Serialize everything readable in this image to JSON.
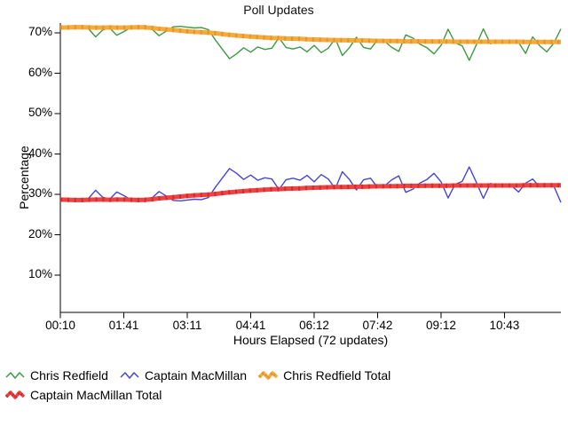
{
  "chart_data": {
    "type": "line",
    "title": "Poll Updates",
    "xlabel": "Hours Elapsed (72 updates)",
    "ylabel": "Percentage",
    "n_points": 72,
    "x_tick_labels": [
      "00:10",
      "01:41",
      "03:11",
      "04:41",
      "06:12",
      "07:42",
      "09:12",
      "10:43"
    ],
    "x_tick_indices": [
      0,
      9,
      18,
      27,
      36,
      45,
      54,
      63
    ],
    "y_ticks": [
      10,
      20,
      30,
      40,
      50,
      60,
      70
    ],
    "y_tick_suffix": "%",
    "ylim": [
      0,
      72
    ],
    "grid": false,
    "legend_position": "bottom",
    "series": [
      {
        "name": "Chris Redfield",
        "color": "#3d9a41",
        "line_style": "thin",
        "values": [
          71.0,
          71.4,
          71.0,
          71.5,
          71.0,
          69.0,
          70.7,
          71.2,
          69.4,
          70.3,
          71.3,
          71.5,
          71.8,
          70.9,
          69.3,
          70.4,
          71.5,
          71.6,
          71.4,
          71.2,
          71.3,
          70.8,
          68.2,
          65.9,
          63.6,
          64.8,
          66.3,
          65.2,
          66.5,
          65.9,
          66.2,
          68.8,
          66.4,
          66.0,
          66.5,
          65.3,
          66.9,
          65.1,
          66.2,
          68.6,
          64.4,
          66.3,
          68.9,
          66.4,
          66.0,
          68.3,
          67.9,
          66.4,
          65.4,
          69.5,
          68.7,
          67.2,
          66.3,
          64.8,
          66.9,
          70.9,
          67.5,
          66.8,
          63.2,
          67.0,
          71.0,
          67.3,
          67.8,
          67.8,
          67.9,
          67.6,
          64.9,
          69.0,
          66.8,
          65.3,
          67.5,
          71.0
        ]
      },
      {
        "name": "Captain MacMillan",
        "color": "#4446d8",
        "line_style": "thin",
        "values": [
          29.0,
          28.6,
          29.0,
          28.5,
          29.0,
          31.0,
          29.3,
          28.8,
          30.6,
          29.7,
          28.7,
          28.5,
          28.2,
          29.1,
          30.7,
          29.6,
          28.5,
          28.4,
          28.6,
          28.8,
          28.7,
          29.2,
          31.8,
          34.1,
          36.4,
          35.2,
          33.7,
          34.8,
          33.5,
          34.1,
          33.8,
          31.2,
          33.6,
          34.0,
          33.5,
          34.7,
          33.1,
          34.9,
          33.8,
          31.4,
          35.6,
          33.7,
          31.1,
          33.6,
          34.0,
          31.7,
          32.1,
          33.6,
          34.6,
          30.5,
          31.3,
          32.8,
          33.7,
          35.2,
          33.1,
          29.1,
          32.5,
          33.2,
          36.8,
          33.0,
          29.0,
          32.7,
          32.2,
          32.2,
          32.1,
          30.6,
          32.8,
          33.8,
          31.8,
          32.3,
          32.0,
          28.0
        ]
      },
      {
        "name": "Chris Redfield Total",
        "color": "#f5ab3c",
        "color_dark": "#e59426",
        "line_style": "thick",
        "values": [
          71.3,
          71.35,
          71.4,
          71.4,
          71.35,
          71.3,
          71.3,
          71.35,
          71.3,
          71.3,
          71.35,
          71.4,
          71.35,
          71.2,
          71.0,
          70.85,
          70.7,
          70.55,
          70.4,
          70.25,
          70.15,
          70.05,
          69.9,
          69.7,
          69.5,
          69.35,
          69.2,
          69.05,
          68.95,
          68.85,
          68.75,
          68.7,
          68.6,
          68.55,
          68.5,
          68.4,
          68.35,
          68.3,
          68.25,
          68.2,
          68.2,
          68.15,
          68.1,
          68.1,
          68.05,
          68.0,
          68.0,
          67.95,
          67.95,
          67.9,
          67.9,
          67.9,
          67.85,
          67.85,
          67.85,
          67.85,
          67.8,
          67.8,
          67.8,
          67.8,
          67.8,
          67.8,
          67.8,
          67.8,
          67.8,
          67.8,
          67.75,
          67.75,
          67.75,
          67.75,
          67.75,
          67.75
        ]
      },
      {
        "name": "Captain MacMillan Total",
        "color": "#ef4343",
        "color_dark": "#d32b2b",
        "line_style": "thick",
        "values": [
          28.7,
          28.65,
          28.6,
          28.6,
          28.65,
          28.7,
          28.7,
          28.65,
          28.7,
          28.7,
          28.65,
          28.6,
          28.65,
          28.8,
          29.0,
          29.15,
          29.3,
          29.45,
          29.6,
          29.75,
          29.85,
          29.95,
          30.1,
          30.3,
          30.5,
          30.65,
          30.8,
          30.95,
          31.05,
          31.15,
          31.25,
          31.3,
          31.4,
          31.45,
          31.5,
          31.6,
          31.65,
          31.7,
          31.75,
          31.8,
          31.8,
          31.85,
          31.9,
          31.9,
          31.95,
          32.0,
          32.0,
          32.05,
          32.05,
          32.1,
          32.1,
          32.1,
          32.15,
          32.15,
          32.15,
          32.15,
          32.2,
          32.2,
          32.2,
          32.2,
          32.2,
          32.2,
          32.2,
          32.2,
          32.2,
          32.2,
          32.25,
          32.25,
          32.25,
          32.25,
          32.25,
          32.25
        ]
      }
    ]
  }
}
